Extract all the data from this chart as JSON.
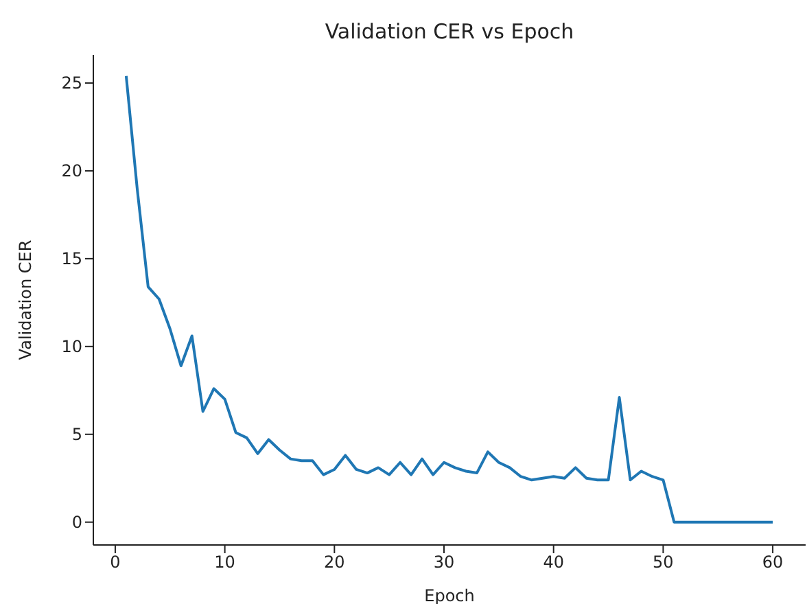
{
  "chart_data": {
    "type": "line",
    "title": "Validation CER vs Epoch",
    "xlabel": "Epoch",
    "ylabel": "Validation CER",
    "x": [
      1,
      2,
      3,
      4,
      5,
      6,
      7,
      8,
      9,
      10,
      11,
      12,
      13,
      14,
      15,
      16,
      17,
      18,
      19,
      20,
      21,
      22,
      23,
      24,
      25,
      26,
      27,
      28,
      29,
      30,
      31,
      32,
      33,
      34,
      35,
      36,
      37,
      38,
      39,
      40,
      41,
      42,
      43,
      44,
      45,
      46,
      47,
      48,
      49,
      50,
      51,
      52,
      53,
      54,
      55,
      56,
      57,
      58,
      59,
      60
    ],
    "series": [
      {
        "color": "#1f77b4",
        "values": [
          25.4,
          19,
          13.4,
          12.7,
          11,
          8.9,
          10.6,
          6.3,
          7.6,
          7,
          5.1,
          4.8,
          3.9,
          4.7,
          4.1,
          3.6,
          3.5,
          3.5,
          2.7,
          3,
          3.8,
          3,
          2.8,
          3.1,
          2.7,
          3.4,
          2.7,
          3.6,
          2.7,
          3.4,
          3.1,
          2.9,
          2.8,
          4,
          3.4,
          3.1,
          2.6,
          2.4,
          2.5,
          2.6,
          2.5,
          3.1,
          2.5,
          2.4,
          2.4,
          7.1,
          2.4,
          2.9,
          2.6,
          2.4,
          0,
          0,
          0,
          0,
          0,
          0,
          0,
          0,
          0,
          0
        ]
      }
    ],
    "xlim": [
      -2,
      63
    ],
    "xticks": [
      0,
      10,
      20,
      30,
      40,
      50,
      60
    ],
    "ylim": [
      -1.3,
      26.6
    ],
    "yticks": [
      0,
      5,
      10,
      15,
      20,
      25
    ],
    "grid": false,
    "legend": false,
    "marker": "none",
    "line_style": "solid"
  }
}
